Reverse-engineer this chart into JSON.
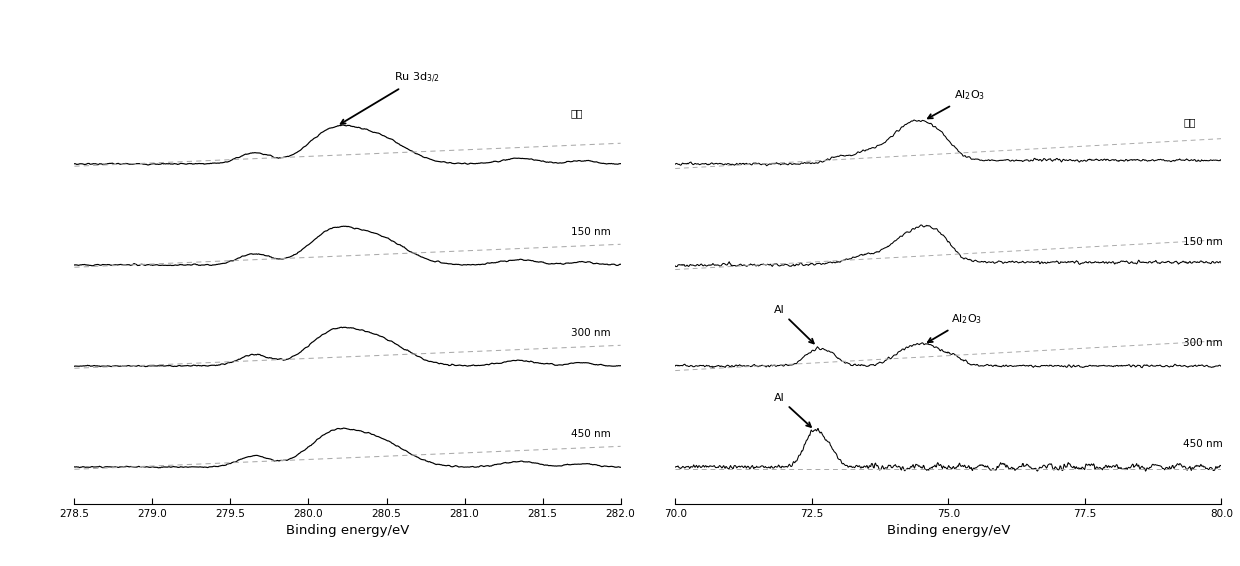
{
  "left_panel": {
    "xlabel": "Binding energy/eV",
    "xmin": 278.5,
    "xmax": 282.0,
    "xticks": [
      278.5,
      279.0,
      279.5,
      280.0,
      280.5,
      281.0,
      281.5,
      282.0
    ],
    "labels": [
      "表面",
      "150 nm",
      "300 nm",
      "450 nm"
    ]
  },
  "right_panel": {
    "xlabel": "Binding energy/eV",
    "xmin": 70.0,
    "xmax": 80.0,
    "xticks": [
      70.0,
      72.5,
      75.0,
      77.5,
      80.0
    ],
    "labels": [
      "表面",
      "150 nm",
      "300 nm",
      "450 nm"
    ]
  },
  "bg_color": "#ffffff",
  "line_color": "#000000",
  "baseline_color": "#aaaaaa"
}
